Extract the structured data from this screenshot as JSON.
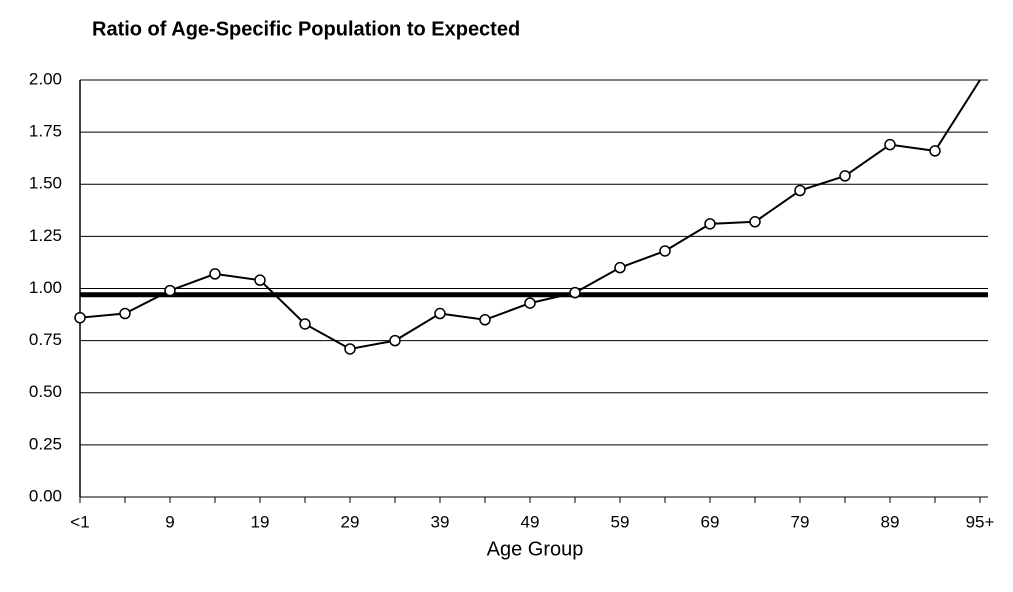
{
  "chart_data": {
    "type": "line",
    "title": "Ratio of Age-Specific Population to Expected",
    "x_label": "Age Group",
    "categories": [
      "<1",
      null,
      "9",
      null,
      "19",
      null,
      "29",
      null,
      "39",
      null,
      "49",
      null,
      "59",
      null,
      "69",
      null,
      "79",
      null,
      "89",
      null,
      "95+"
    ],
    "series": [
      {
        "name": "Ratio",
        "color": "#000000",
        "values": [
          0.86,
          0.88,
          0.99,
          1.07,
          1.04,
          0.83,
          0.71,
          0.75,
          0.88,
          0.85,
          0.93,
          0.98,
          1.1,
          1.18,
          1.31,
          1.32,
          1.47,
          1.54,
          1.69,
          1.66,
          2.0
        ]
      }
    ],
    "reference_line": {
      "value": 0.97,
      "color": "#000000"
    },
    "ylim": [
      0,
      2
    ],
    "yticks": [
      {
        "value": 0,
        "label": "0.00"
      },
      {
        "value": 0.25,
        "label": "0.25"
      },
      {
        "value": 0.5,
        "label": "0.50"
      },
      {
        "value": 0.75,
        "label": "0.75"
      },
      {
        "value": 1,
        "label": "1.00"
      },
      {
        "value": 1.25,
        "label": "1.25"
      },
      {
        "value": 1.5,
        "label": "1.50"
      },
      {
        "value": 1.75,
        "label": "1.75"
      },
      {
        "value": 2,
        "label": "2.00"
      }
    ],
    "grid": true
  }
}
